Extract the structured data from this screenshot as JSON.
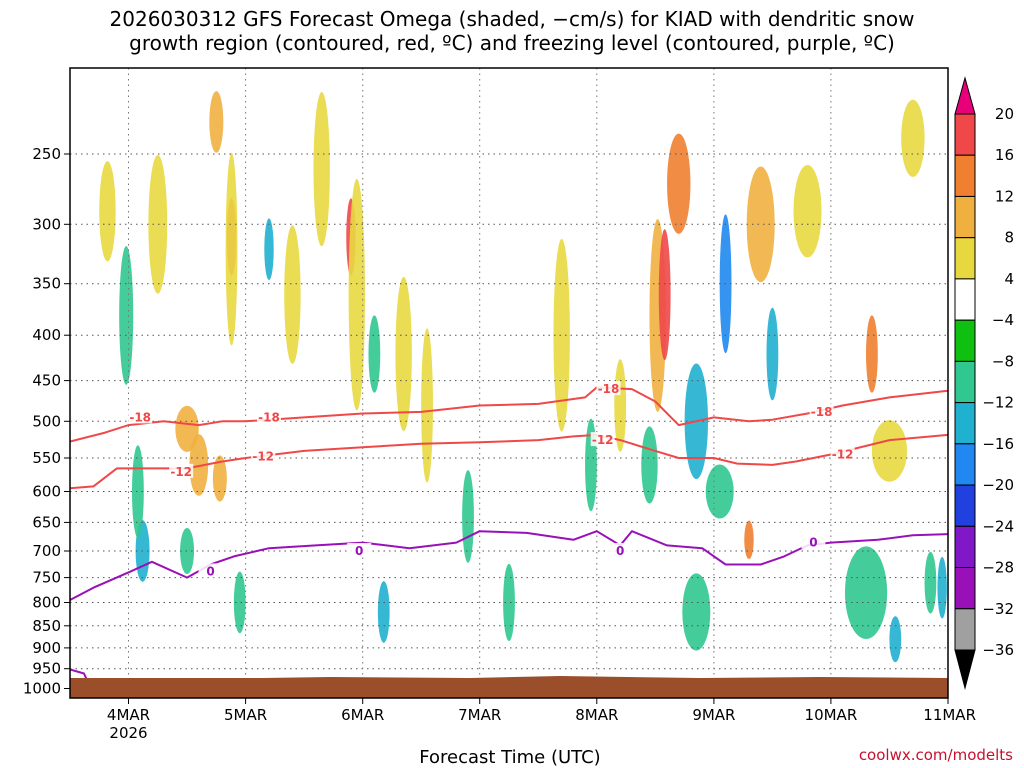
{
  "chart_data": {
    "type": "heatmap",
    "title_line1": "2026030312 GFS Forecast Omega (shaded, −cm/s) for KIAD with dendritic snow",
    "title_line2": "growth region (contoured, red, ºC) and freezing level (contoured, purple, ºC)",
    "xlabel": "Forecast Time (UTC)",
    "credit": "coolwx.com/modelts",
    "x_ticks": [
      {
        "day": 4,
        "label": "4MAR",
        "sublabel": "2026"
      },
      {
        "day": 5,
        "label": "5MAR",
        "sublabel": ""
      },
      {
        "day": 6,
        "label": "6MAR",
        "sublabel": ""
      },
      {
        "day": 7,
        "label": "7MAR",
        "sublabel": ""
      },
      {
        "day": 8,
        "label": "8MAR",
        "sublabel": ""
      },
      {
        "day": 9,
        "label": "9MAR",
        "sublabel": ""
      },
      {
        "day": 10,
        "label": "10MAR",
        "sublabel": ""
      },
      {
        "day": 11,
        "label": "11MAR",
        "sublabel": ""
      }
    ],
    "xlim": [
      3.5,
      11.0
    ],
    "y_ticks": [
      250,
      300,
      350,
      400,
      450,
      500,
      550,
      600,
      650,
      700,
      750,
      800,
      850,
      900,
      950,
      1000
    ],
    "ylim": [
      1025,
      200
    ],
    "y_scale": "log",
    "grid": true,
    "colorbar": {
      "labels": [
        "20",
        "16",
        "12",
        "8",
        "4",
        "−4",
        "−8",
        "−12",
        "−16",
        "−20",
        "−24",
        "−28",
        "−32",
        "−36"
      ],
      "colors": [
        "#e8007a",
        "#f04848",
        "#f08030",
        "#f0b040",
        "#e8d840",
        "#ffffff",
        "#10c010",
        "#30c890",
        "#20b0d0",
        "#2088f0",
        "#2040e0",
        "#8018c8",
        "#9a10b8",
        "#a0a0a0",
        "#000000"
      ]
    },
    "omega_blobs": [
      {
        "day": 3.82,
        "p": 290,
        "dx": 0.07,
        "dlp": 0.13,
        "v": 6
      },
      {
        "day": 3.98,
        "p": 380,
        "dx": 0.06,
        "dlp": 0.18,
        "v": -9
      },
      {
        "day": 4.12,
        "p": 700,
        "dx": 0.06,
        "dlp": 0.08,
        "v": -12
      },
      {
        "day": 4.08,
        "p": 600,
        "dx": 0.05,
        "dlp": 0.12,
        "v": -9
      },
      {
        "day": 4.25,
        "p": 300,
        "dx": 0.08,
        "dlp": 0.18,
        "v": 6
      },
      {
        "day": 4.5,
        "p": 510,
        "dx": 0.1,
        "dlp": 0.06,
        "v": 10
      },
      {
        "day": 4.6,
        "p": 560,
        "dx": 0.08,
        "dlp": 0.08,
        "v": 8
      },
      {
        "day": 4.5,
        "p": 700,
        "dx": 0.06,
        "dlp": 0.06,
        "v": -9
      },
      {
        "day": 4.75,
        "p": 230,
        "dx": 0.06,
        "dlp": 0.08,
        "v": 9
      },
      {
        "day": 4.88,
        "p": 310,
        "dx": 0.04,
        "dlp": 0.1,
        "v": 18
      },
      {
        "day": 4.88,
        "p": 320,
        "dx": 0.05,
        "dlp": 0.25,
        "v": 6
      },
      {
        "day": 4.78,
        "p": 580,
        "dx": 0.06,
        "dlp": 0.06,
        "v": 10
      },
      {
        "day": 4.95,
        "p": 800,
        "dx": 0.05,
        "dlp": 0.08,
        "v": -9
      },
      {
        "day": 5.2,
        "p": 320,
        "dx": 0.04,
        "dlp": 0.08,
        "v": -12
      },
      {
        "day": 5.4,
        "p": 360,
        "dx": 0.07,
        "dlp": 0.18,
        "v": 5
      },
      {
        "day": 5.65,
        "p": 260,
        "dx": 0.07,
        "dlp": 0.2,
        "v": 5
      },
      {
        "day": 5.9,
        "p": 310,
        "dx": 0.04,
        "dlp": 0.1,
        "v": 16
      },
      {
        "day": 5.95,
        "p": 360,
        "dx": 0.07,
        "dlp": 0.3,
        "v": 6
      },
      {
        "day": 6.1,
        "p": 420,
        "dx": 0.05,
        "dlp": 0.1,
        "v": -10
      },
      {
        "day": 6.18,
        "p": 820,
        "dx": 0.05,
        "dlp": 0.08,
        "v": -12
      },
      {
        "day": 6.35,
        "p": 420,
        "dx": 0.07,
        "dlp": 0.2,
        "v": 5
      },
      {
        "day": 6.55,
        "p": 480,
        "dx": 0.05,
        "dlp": 0.2,
        "v": 5
      },
      {
        "day": 6.9,
        "p": 640,
        "dx": 0.05,
        "dlp": 0.12,
        "v": -9
      },
      {
        "day": 7.25,
        "p": 800,
        "dx": 0.05,
        "dlp": 0.1,
        "v": -9
      },
      {
        "day": 7.7,
        "p": 400,
        "dx": 0.07,
        "dlp": 0.25,
        "v": 5
      },
      {
        "day": 7.95,
        "p": 560,
        "dx": 0.05,
        "dlp": 0.12,
        "v": -9
      },
      {
        "day": 8.2,
        "p": 480,
        "dx": 0.05,
        "dlp": 0.12,
        "v": 5
      },
      {
        "day": 8.52,
        "p": 380,
        "dx": 0.07,
        "dlp": 0.25,
        "v": 10
      },
      {
        "day": 8.58,
        "p": 360,
        "dx": 0.05,
        "dlp": 0.17,
        "v": 19
      },
      {
        "day": 8.7,
        "p": 270,
        "dx": 0.1,
        "dlp": 0.13,
        "v": 12
      },
      {
        "day": 8.45,
        "p": 560,
        "dx": 0.07,
        "dlp": 0.1,
        "v": -10
      },
      {
        "day": 8.85,
        "p": 500,
        "dx": 0.1,
        "dlp": 0.15,
        "v": -12
      },
      {
        "day": 8.85,
        "p": 820,
        "dx": 0.12,
        "dlp": 0.1,
        "v": -10
      },
      {
        "day": 9.1,
        "p": 350,
        "dx": 0.05,
        "dlp": 0.18,
        "v": -16
      },
      {
        "day": 9.05,
        "p": 600,
        "dx": 0.12,
        "dlp": 0.07,
        "v": -9
      },
      {
        "day": 9.3,
        "p": 680,
        "dx": 0.04,
        "dlp": 0.05,
        "v": 12
      },
      {
        "day": 9.4,
        "p": 300,
        "dx": 0.12,
        "dlp": 0.15,
        "v": 9
      },
      {
        "day": 9.5,
        "p": 420,
        "dx": 0.05,
        "dlp": 0.12,
        "v": -12
      },
      {
        "day": 9.8,
        "p": 290,
        "dx": 0.12,
        "dlp": 0.12,
        "v": 5
      },
      {
        "day": 10.35,
        "p": 420,
        "dx": 0.05,
        "dlp": 0.1,
        "v": 12
      },
      {
        "day": 10.5,
        "p": 540,
        "dx": 0.15,
        "dlp": 0.08,
        "v": 5
      },
      {
        "day": 10.3,
        "p": 780,
        "dx": 0.18,
        "dlp": 0.12,
        "v": -9
      },
      {
        "day": 10.55,
        "p": 880,
        "dx": 0.05,
        "dlp": 0.06,
        "v": -12
      },
      {
        "day": 10.7,
        "p": 240,
        "dx": 0.1,
        "dlp": 0.1,
        "v": 5
      },
      {
        "day": 10.85,
        "p": 760,
        "dx": 0.05,
        "dlp": 0.08,
        "v": -9
      },
      {
        "day": 10.95,
        "p": 770,
        "dx": 0.04,
        "dlp": 0.08,
        "v": -14
      }
    ],
    "contours": [
      {
        "name": "-18",
        "color": "#f04848",
        "labels": [
          [
            4.1,
            495
          ],
          [
            5.2,
            495
          ],
          [
            8.1,
            460
          ],
          [
            9.92,
            488
          ]
        ],
        "points": [
          [
            3.5,
            527
          ],
          [
            3.8,
            515
          ],
          [
            4.0,
            505
          ],
          [
            4.3,
            500
          ],
          [
            4.6,
            505
          ],
          [
            4.8,
            500
          ],
          [
            5.0,
            500
          ],
          [
            5.5,
            495
          ],
          [
            6.0,
            490
          ],
          [
            6.5,
            488
          ],
          [
            7.0,
            480
          ],
          [
            7.5,
            478
          ],
          [
            7.9,
            470
          ],
          [
            8.0,
            458
          ],
          [
            8.3,
            460
          ],
          [
            8.5,
            475
          ],
          [
            8.7,
            505
          ],
          [
            9.0,
            495
          ],
          [
            9.3,
            500
          ],
          [
            9.5,
            498
          ],
          [
            9.8,
            490
          ],
          [
            10.1,
            480
          ],
          [
            10.5,
            470
          ],
          [
            11.0,
            462
          ]
        ]
      },
      {
        "name": "-12",
        "color": "#f04848",
        "labels": [
          [
            4.45,
            570
          ],
          [
            5.15,
            548
          ],
          [
            8.05,
            525
          ],
          [
            10.1,
            545
          ]
        ],
        "points": [
          [
            3.5,
            595
          ],
          [
            3.7,
            592
          ],
          [
            3.9,
            565
          ],
          [
            4.2,
            565
          ],
          [
            4.5,
            565
          ],
          [
            4.8,
            555
          ],
          [
            5.0,
            550
          ],
          [
            5.5,
            540
          ],
          [
            6.0,
            535
          ],
          [
            6.5,
            530
          ],
          [
            7.0,
            528
          ],
          [
            7.5,
            525
          ],
          [
            7.8,
            520
          ],
          [
            8.0,
            518
          ],
          [
            8.2,
            525
          ],
          [
            8.5,
            540
          ],
          [
            8.7,
            550
          ],
          [
            9.0,
            550
          ],
          [
            9.2,
            558
          ],
          [
            9.5,
            560
          ],
          [
            9.7,
            555
          ],
          [
            10.0,
            545
          ],
          [
            10.5,
            525
          ],
          [
            11.0,
            518
          ]
        ]
      },
      {
        "name": "0",
        "color": "#9a10b8",
        "labels": [
          [
            4.7,
            738
          ],
          [
            5.97,
            700
          ],
          [
            8.2,
            700
          ],
          [
            9.85,
            685
          ]
        ],
        "points": [
          [
            3.5,
            795
          ],
          [
            3.7,
            770
          ],
          [
            4.0,
            740
          ],
          [
            4.2,
            720
          ],
          [
            4.5,
            750
          ],
          [
            4.7,
            725
          ],
          [
            4.9,
            710
          ],
          [
            5.2,
            695
          ],
          [
            5.6,
            690
          ],
          [
            6.0,
            685
          ],
          [
            6.4,
            695
          ],
          [
            6.8,
            685
          ],
          [
            7.0,
            665
          ],
          [
            7.4,
            668
          ],
          [
            7.8,
            680
          ],
          [
            8.0,
            665
          ],
          [
            8.2,
            690
          ],
          [
            8.3,
            665
          ],
          [
            8.6,
            690
          ],
          [
            8.9,
            695
          ],
          [
            9.1,
            725
          ],
          [
            9.4,
            725
          ],
          [
            9.6,
            710
          ],
          [
            9.8,
            690
          ],
          [
            10.0,
            685
          ],
          [
            10.4,
            680
          ],
          [
            10.7,
            672
          ],
          [
            11.0,
            670
          ]
        ]
      },
      {
        "name": "0",
        "color": "#9a10b8",
        "labels": [],
        "points": [
          [
            3.5,
            952
          ],
          [
            3.62,
            962
          ],
          [
            3.65,
            982
          ],
          [
            3.58,
            1005
          ],
          [
            3.5,
            1012
          ]
        ]
      }
    ]
  }
}
